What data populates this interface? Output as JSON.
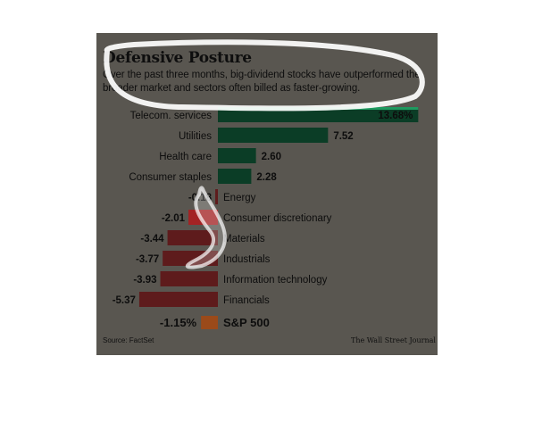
{
  "source": "Source: FactSet",
  "credit": "The Wall Street Journal",
  "chart_data": {
    "type": "bar",
    "orientation": "horizontal",
    "title": "Defensive Posture",
    "subtitle": "Over the past three months, big-dividend stocks have outperformed the broader market and sectors often billed as faster-growing.",
    "categories": [
      "Telecom. services",
      "Utilities",
      "Health care",
      "Consumer staples",
      "Energy",
      "Consumer discretionary",
      "Materials",
      "Industrials",
      "Information technology",
      "Financials"
    ],
    "values": [
      13.68,
      7.52,
      2.6,
      2.28,
      -0.18,
      -2.01,
      -3.44,
      -3.77,
      -3.93,
      -5.37
    ],
    "value_labels": [
      "13.68%",
      "7.52",
      "2.60",
      "2.28",
      "-0.18",
      "-2.01",
      "-3.44",
      "-3.77",
      "-3.93",
      "-5.37"
    ],
    "benchmark": {
      "label": "S&P 500",
      "value": -1.15,
      "value_label": "-1.15%"
    },
    "colors": {
      "positive": "#0b3d26",
      "positive_highlight": "#1f9a60",
      "negative": "#5e1b1c",
      "negative_light": "#a32324",
      "benchmark": "#9b4a1a",
      "background": "#595650"
    }
  }
}
